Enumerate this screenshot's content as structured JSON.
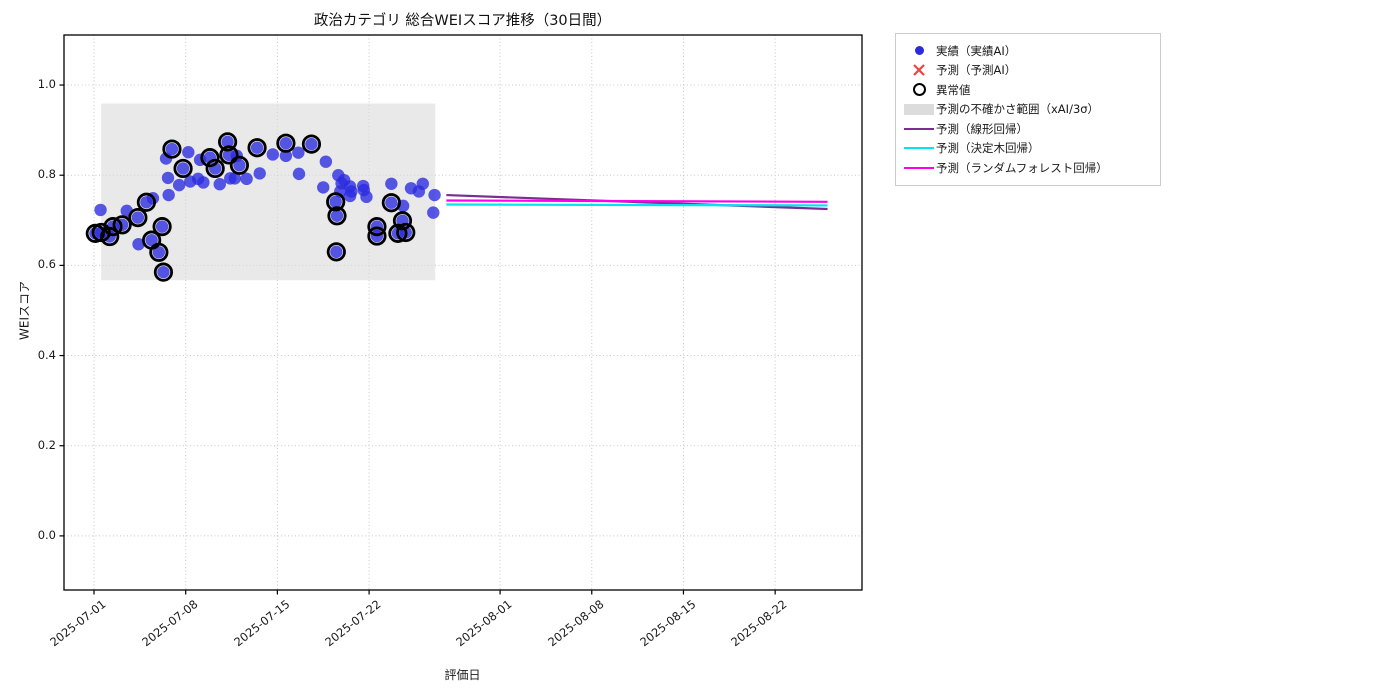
{
  "figure": {
    "title": "政治カテゴリ 総合WEIスコア推移（30日間）",
    "xlabel": "評価日",
    "ylabel": "WEIスコア"
  },
  "legend": {
    "items": [
      {
        "label": "実績（実績AI）",
        "marker": "blue-dot",
        "color": "#2a2ae0"
      },
      {
        "label": "予測（予測AI）",
        "marker": "red-x",
        "color": "#ef4343"
      },
      {
        "label": "異常値",
        "marker": "black-open-circle",
        "color": "#000000"
      },
      {
        "label": "予測の不確かさ範囲（xAI/3σ）",
        "marker": "gray-rect",
        "color": "#dcdcdc"
      },
      {
        "label": "予測（線形回帰）",
        "marker": "line",
        "color": "#7b2d90"
      },
      {
        "label": "予測（決定木回帰）",
        "marker": "line",
        "color": "#00e5ee"
      },
      {
        "label": "予測（ランダムフォレスト回帰）",
        "marker": "line",
        "color": "#ff00ee"
      }
    ]
  },
  "chart_data": {
    "type": "scatter",
    "title": "政治カテゴリ 総合WEIスコア推移（30日間）",
    "xlabel": "評価日",
    "ylabel": "WEIスコア",
    "grid": true,
    "x_origin_date": "2025-07-01",
    "x_unit": "days since 2025-07-01",
    "xlim_days": [
      -2.29,
      58.63
    ],
    "ylim": [
      -0.12,
      1.111
    ],
    "x_ticks": [
      {
        "day": 0,
        "label": "2025-07-01"
      },
      {
        "day": 7,
        "label": "2025-07-08"
      },
      {
        "day": 14,
        "label": "2025-07-15"
      },
      {
        "day": 21,
        "label": "2025-07-22"
      },
      {
        "day": 31,
        "label": "2025-08-01"
      },
      {
        "day": 38,
        "label": "2025-08-08"
      },
      {
        "day": 45,
        "label": "2025-08-15"
      },
      {
        "day": 52,
        "label": "2025-08-22"
      }
    ],
    "y_ticks": [
      0.0,
      0.2,
      0.4,
      0.6,
      0.8,
      1.0
    ],
    "point_color": "#2a2ae0",
    "anomaly_ring_color": "#000000",
    "actual_points": [
      [
        0.1,
        0.671,
        1
      ],
      [
        0.5,
        0.723,
        0
      ],
      [
        0.55,
        0.673,
        1
      ],
      [
        1.2,
        0.664,
        1
      ],
      [
        1.45,
        0.686,
        1
      ],
      [
        2.15,
        0.69,
        1
      ],
      [
        2.5,
        0.721,
        0
      ],
      [
        3.35,
        0.706,
        1
      ],
      [
        3.4,
        0.647,
        0
      ],
      [
        4.0,
        0.74,
        1
      ],
      [
        4.4,
        0.656,
        1
      ],
      [
        4.5,
        0.749,
        0
      ],
      [
        4.95,
        0.629,
        1
      ],
      [
        5.2,
        0.686,
        1
      ],
      [
        5.3,
        0.585,
        1
      ],
      [
        5.5,
        0.837,
        0
      ],
      [
        5.65,
        0.794,
        0
      ],
      [
        5.7,
        0.756,
        0
      ],
      [
        5.95,
        0.858,
        1
      ],
      [
        6.5,
        0.778,
        0
      ],
      [
        6.8,
        0.815,
        1
      ],
      [
        7.2,
        0.851,
        0
      ],
      [
        7.35,
        0.786,
        0
      ],
      [
        7.95,
        0.792,
        0
      ],
      [
        8.1,
        0.834,
        0
      ],
      [
        8.35,
        0.784,
        0
      ],
      [
        8.85,
        0.839,
        1
      ],
      [
        9.25,
        0.815,
        1
      ],
      [
        9.6,
        0.78,
        0
      ],
      [
        10.2,
        0.874,
        1
      ],
      [
        10.3,
        0.845,
        1
      ],
      [
        10.4,
        0.793,
        0
      ],
      [
        10.75,
        0.793,
        0
      ],
      [
        10.9,
        0.843,
        0
      ],
      [
        11.1,
        0.822,
        1
      ],
      [
        11.65,
        0.792,
        0
      ],
      [
        12.45,
        0.861,
        1
      ],
      [
        12.65,
        0.804,
        0
      ],
      [
        13.65,
        0.846,
        0
      ],
      [
        14.65,
        0.871,
        1
      ],
      [
        14.65,
        0.843,
        0
      ],
      [
        15.6,
        0.85,
        0
      ],
      [
        15.65,
        0.803,
        0
      ],
      [
        16.6,
        0.869,
        1
      ],
      [
        17.5,
        0.773,
        0
      ],
      [
        17.7,
        0.83,
        0
      ],
      [
        18.45,
        0.741,
        1
      ],
      [
        18.55,
        0.71,
        1
      ],
      [
        18.5,
        0.63,
        1
      ],
      [
        18.65,
        0.8,
        0
      ],
      [
        18.8,
        0.764,
        0
      ],
      [
        18.9,
        0.782,
        0
      ],
      [
        19.1,
        0.789,
        0
      ],
      [
        19.55,
        0.775,
        0
      ],
      [
        19.55,
        0.754,
        0
      ],
      [
        19.65,
        0.764,
        0
      ],
      [
        20.55,
        0.776,
        0
      ],
      [
        20.6,
        0.767,
        0
      ],
      [
        20.8,
        0.752,
        0
      ],
      [
        21.6,
        0.686,
        1
      ],
      [
        21.6,
        0.665,
        1
      ],
      [
        22.7,
        0.781,
        0
      ],
      [
        22.7,
        0.739,
        1
      ],
      [
        23.2,
        0.671,
        1
      ],
      [
        23.55,
        0.699,
        1
      ],
      [
        23.6,
        0.732,
        0
      ],
      [
        23.8,
        0.673,
        1
      ],
      [
        24.2,
        0.771,
        0
      ],
      [
        24.8,
        0.764,
        0
      ],
      [
        25.1,
        0.781,
        0
      ],
      [
        25.9,
        0.717,
        0
      ],
      [
        26.0,
        0.756,
        0
      ]
    ],
    "uncertainty_band": {
      "x_days": [
        0.55,
        26.05
      ],
      "y_range": [
        0.567,
        0.959
      ]
    },
    "prediction_lines": [
      {
        "name": "予測（線形回帰）",
        "color": "#7b2d90",
        "points": [
          [
            26.9,
            0.756
          ],
          [
            56.0,
            0.725
          ]
        ]
      },
      {
        "name": "予測（決定木回帰）",
        "color": "#00e5ee",
        "points": [
          [
            26.9,
            0.735
          ],
          [
            56.0,
            0.733
          ]
        ]
      },
      {
        "name": "予測（ランダムフォレスト回帰）",
        "color": "#ff00ee",
        "points": [
          [
            26.9,
            0.744
          ],
          [
            56.0,
            0.741
          ]
        ]
      }
    ]
  }
}
